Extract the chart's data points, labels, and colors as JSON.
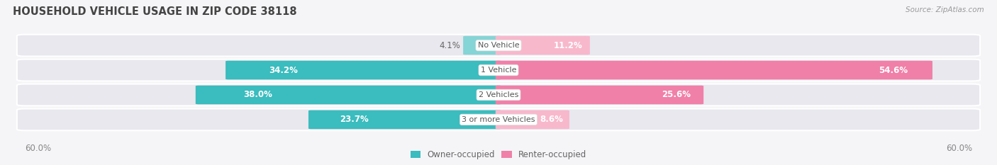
{
  "title": "HOUSEHOLD VEHICLE USAGE IN ZIP CODE 38118",
  "source": "Source: ZipAtlas.com",
  "categories": [
    "No Vehicle",
    "1 Vehicle",
    "2 Vehicles",
    "3 or more Vehicles"
  ],
  "owner_values": [
    4.1,
    34.2,
    38.0,
    23.7
  ],
  "renter_values": [
    11.2,
    54.6,
    25.6,
    8.6
  ],
  "owner_color": "#3bbcbe",
  "renter_color": "#f080a8",
  "owner_color_light": "#85d4d6",
  "renter_color_light": "#f8b8cc",
  "axis_max": 60.0,
  "axis_label_left": "60.0%",
  "axis_label_right": "60.0%",
  "legend_owner": "Owner-occupied",
  "legend_renter": "Renter-occupied",
  "background_color": "#f5f5f8",
  "bar_background": "#e8e8ee",
  "title_fontsize": 10.5,
  "source_fontsize": 7.5,
  "label_fontsize": 8.5,
  "category_fontsize": 8,
  "label_color_outside": "#666666",
  "label_color_inside": "#ffffff"
}
